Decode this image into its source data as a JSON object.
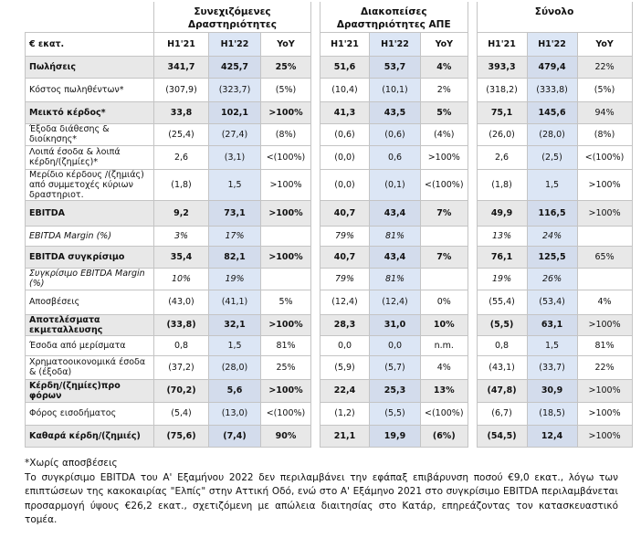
{
  "table": {
    "unit_label": "€ εκατ.",
    "groups": [
      {
        "title": "Συνεχιζόμενες Δραστηριότητες",
        "columns": [
          "H1'21",
          "H1'22",
          "YoY"
        ]
      },
      {
        "title": "Διακοπείσες Δραστηριότητες ΑΠΕ",
        "columns": [
          "H1'21",
          "H1'22",
          "YoY"
        ]
      },
      {
        "title": "Σύνολο",
        "columns": [
          "H1'21",
          "H1'22",
          "YoY"
        ]
      }
    ],
    "rows": [
      {
        "label": "Πωλήσεις",
        "cells": [
          "341,7",
          "425,7",
          "25%",
          "51,6",
          "53,7",
          "4%",
          "393,3",
          "479,4",
          "22%"
        ]
      },
      {
        "label": "Κόστος πωληθέντων*",
        "cells": [
          "(307,9)",
          "(323,7)",
          "(5%)",
          "(10,4)",
          "(10,1)",
          "2%",
          "(318,2)",
          "(333,8)",
          "(5%)"
        ]
      },
      {
        "label": "Μεικτό κέρδος*",
        "cells": [
          "33,8",
          "102,1",
          ">100%",
          "41,3",
          "43,5",
          "5%",
          "75,1",
          "145,6",
          "94%"
        ]
      },
      {
        "label": "Έξοδα διάθεσης & διοίκησης*",
        "cells": [
          "(25,4)",
          "(27,4)",
          "(8%)",
          "(0,6)",
          "(0,6)",
          "(4%)",
          "(26,0)",
          "(28,0)",
          "(8%)"
        ]
      },
      {
        "label": "Λοιπά έσοδα & λοιπά κέρδη/(ζημίες)*",
        "cells": [
          "2,6",
          "(3,1)",
          "<(100%)",
          "(0,0)",
          "0,6",
          ">100%",
          "2,6",
          "(2,5)",
          "<(100%)"
        ]
      },
      {
        "label": "Μερίδιο κέρδους /(ζημιάς) από συμμετοχές κύριων δραστηριοτ.",
        "cells": [
          "(1,8)",
          "1,5",
          ">100%",
          "(0,0)",
          "(0,1)",
          "<(100%)",
          "(1,8)",
          "1,5",
          ">100%"
        ]
      },
      {
        "label": "EBITDA",
        "cells": [
          "9,2",
          "73,1",
          ">100%",
          "40,7",
          "43,4",
          "7%",
          "49,9",
          "116,5",
          ">100%"
        ]
      },
      {
        "label": "EBITDA Margin (%)",
        "cells": [
          "3%",
          "17%",
          null,
          "79%",
          "81%",
          null,
          "13%",
          "24%",
          null
        ]
      },
      {
        "label": "EBITDA συγκρίσιμο",
        "cells": [
          "35,4",
          "82,1",
          ">100%",
          "40,7",
          "43,4",
          "7%",
          "76,1",
          "125,5",
          "65%"
        ]
      },
      {
        "label": "Συγκρίσιμο EBITDA Margin (%)",
        "cells": [
          "10%",
          "19%",
          null,
          "79%",
          "81%",
          null,
          "19%",
          "26%",
          null
        ]
      },
      {
        "label": "Αποσβέσεις",
        "cells": [
          "(43,0)",
          "(41,1)",
          "5%",
          "(12,4)",
          "(12,4)",
          "0%",
          "(55,4)",
          "(53,4)",
          "4%"
        ]
      },
      {
        "label": "Αποτελέσματα εκμεταλλευσης",
        "cells": [
          "(33,8)",
          "32,1",
          ">100%",
          "28,3",
          "31,0",
          "10%",
          "(5,5)",
          "63,1",
          ">100%"
        ]
      },
      {
        "label": "Έσοδα από μερίσματα",
        "cells": [
          "0,8",
          "1,5",
          "81%",
          "0,0",
          "0,0",
          "n.m.",
          "0,8",
          "1,5",
          "81%"
        ]
      },
      {
        "label": "Χρηματοοικονομικά έσοδα & (έξοδα)",
        "cells": [
          "(37,2)",
          "(28,0)",
          "25%",
          "(5,9)",
          "(5,7)",
          "4%",
          "(43,1)",
          "(33,7)",
          "22%"
        ]
      },
      {
        "label": "Κέρδη/(ζημίες)προ φόρων",
        "cells": [
          "(70,2)",
          "5,6",
          ">100%",
          "22,4",
          "25,3",
          "13%",
          "(47,8)",
          "30,9",
          ">100%"
        ]
      },
      {
        "label": "Φόρος εισοδήματος",
        "cells": [
          "(5,4)",
          "(13,0)",
          "<(100%)",
          "(1,2)",
          "(5,5)",
          "<(100%)",
          "(6,7)",
          "(18,5)",
          ">100%"
        ]
      },
      {
        "label": "Καθαρά κέρδη/(ζημιές)",
        "cells": [
          "(75,6)",
          "(7,4)",
          "90%",
          "21,1",
          "19,9",
          "(6%)",
          "(54,5)",
          "12,4",
          ">100%"
        ]
      }
    ]
  },
  "footnotes": [
    "*Χωρίς αποσβέσεις",
    "Το συγκρίσιμο EBITDA του Α' Εξαμήνου 2022 δεν περιλαμβάνει την εφάπαξ επιβάρυνση ποσού €9,0 εκατ., λόγω των επιπτώσεων της κακοκαιρίας \"Ελπίς\" στην Αττική Οδό, ενώ στο Α' Εξάμηνο 2021 στο συγκρίσιμο EBITDA περιλαμβάνεται προσαρμογή ύψους €26,2 εκατ., σχετιζόμενη με απώλεια διαιτησίας στο Κατάρ, επηρεάζοντας τον κατασκευαστικό τομέα."
  ]
}
